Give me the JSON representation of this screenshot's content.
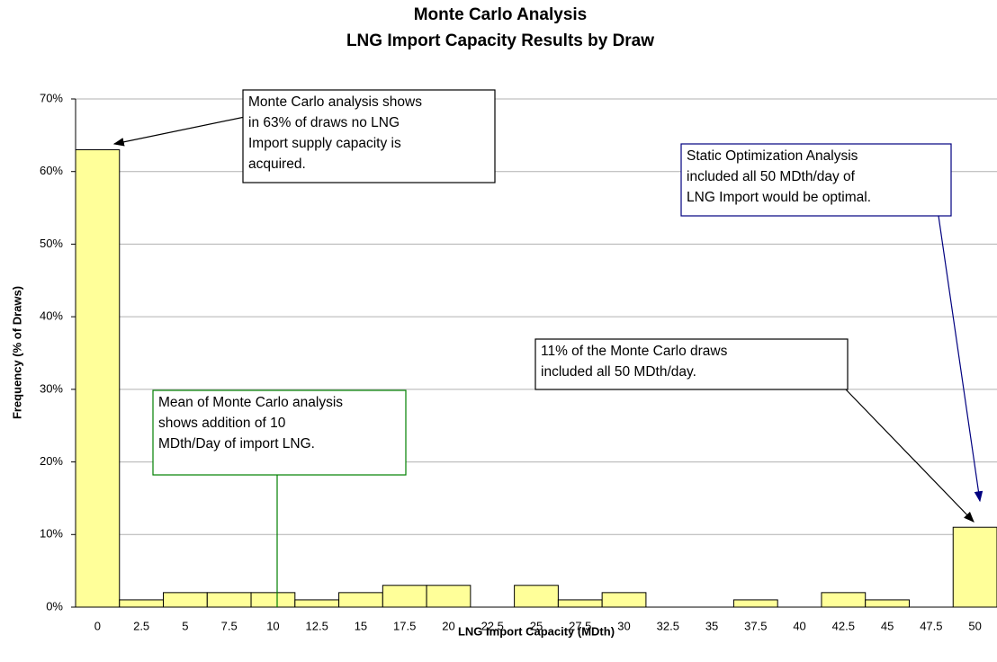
{
  "chart_data": {
    "type": "bar",
    "title": [
      "Monte Carlo Analysis",
      "LNG Import Capacity Results by Draw"
    ],
    "x_label": "LNG Import Capacity (MDth)",
    "y_label": "Frequency (% of Draws)",
    "categories": [
      "0",
      "2.5",
      "5",
      "7.5",
      "10",
      "12.5",
      "15",
      "17.5",
      "20",
      "22.5",
      "25",
      "27.5",
      "30",
      "32.5",
      "35",
      "37.5",
      "40",
      "42.5",
      "45",
      "47.5",
      "50"
    ],
    "values": [
      63,
      1,
      2,
      2,
      2,
      1,
      2,
      3,
      3,
      0,
      3,
      1,
      2,
      0,
      0,
      1,
      0,
      2,
      1,
      0,
      11
    ],
    "color": "#ffff99",
    "ylim": [
      0,
      70
    ],
    "yticks": [
      {
        "value": 0,
        "label": "0%"
      },
      {
        "value": 10,
        "label": "10%"
      },
      {
        "value": 20,
        "label": "20%"
      },
      {
        "value": 30,
        "label": "30%"
      },
      {
        "value": 40,
        "label": "40%"
      },
      {
        "value": 50,
        "label": "50%"
      },
      {
        "value": 60,
        "label": "60%"
      },
      {
        "value": 70,
        "label": "70%"
      }
    ],
    "grid": true,
    "annotations": [
      {
        "lines": [
          "Monte Carlo analysis shows",
          "in 63% of draws no LNG",
          "Import supply capacity is",
          "acquired."
        ],
        "color": "#000000"
      },
      {
        "lines": [
          "Static Optimization Analysis",
          "included all 50 MDth/day of",
          "LNG Import would be optimal."
        ],
        "color": "#000080"
      },
      {
        "lines": [
          "11% of the Monte Carlo draws",
          "included all 50 MDth/day."
        ],
        "color": "#000000"
      },
      {
        "lines": [
          "Mean of Monte Carlo analysis",
          "shows addition of 10",
          "MDth/Day of import LNG."
        ],
        "color": "#008000"
      }
    ]
  }
}
